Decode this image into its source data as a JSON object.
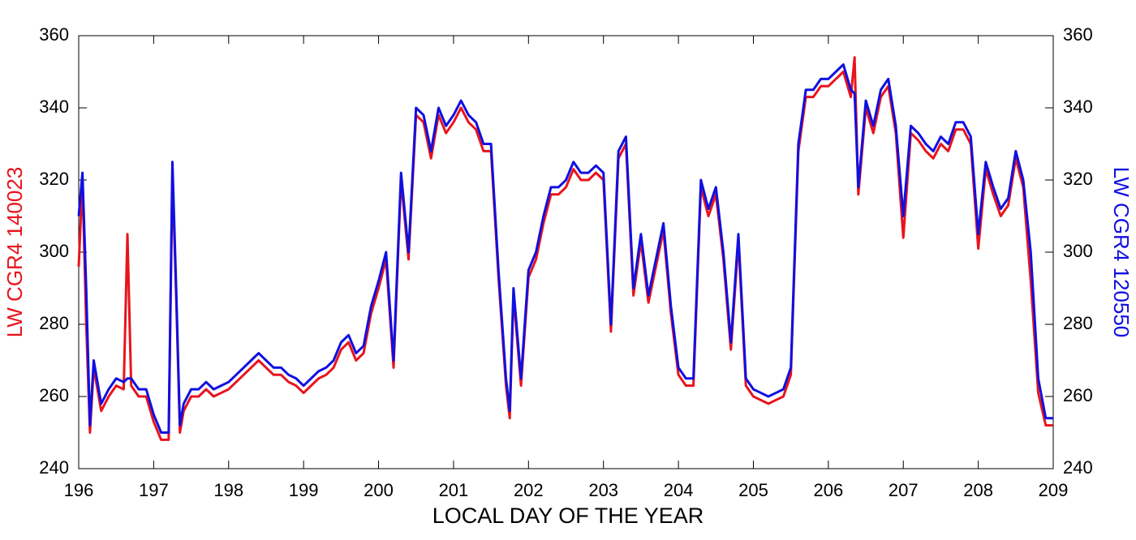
{
  "chart_data": {
    "type": "line",
    "x_label": "LOCAL DAY OF THE YEAR",
    "x": [
      196,
      196.05,
      196.1,
      196.15,
      196.2,
      196.3,
      196.4,
      196.5,
      196.6,
      196.65,
      196.7,
      196.8,
      196.9,
      197,
      197.1,
      197.2,
      197.25,
      197.3,
      197.35,
      197.4,
      197.5,
      197.6,
      197.7,
      197.8,
      197.9,
      198,
      198.1,
      198.2,
      198.3,
      198.4,
      198.5,
      198.6,
      198.7,
      198.8,
      198.9,
      199,
      199.1,
      199.2,
      199.3,
      199.4,
      199.5,
      199.6,
      199.7,
      199.8,
      199.9,
      200,
      200.1,
      200.2,
      200.3,
      200.4,
      200.5,
      200.6,
      200.7,
      200.8,
      200.9,
      201,
      201.1,
      201.2,
      201.3,
      201.4,
      201.5,
      201.6,
      201.7,
      201.75,
      201.8,
      201.9,
      202,
      202.1,
      202.2,
      202.3,
      202.4,
      202.5,
      202.6,
      202.7,
      202.8,
      202.9,
      203,
      203.1,
      203.2,
      203.3,
      203.4,
      203.5,
      203.6,
      203.7,
      203.8,
      203.9,
      204,
      204.1,
      204.2,
      204.3,
      204.4,
      204.5,
      204.6,
      204.7,
      204.8,
      204.9,
      205,
      205.1,
      205.2,
      205.3,
      205.4,
      205.5,
      205.6,
      205.7,
      205.8,
      205.9,
      206,
      206.1,
      206.2,
      206.3,
      206.35,
      206.4,
      206.5,
      206.6,
      206.7,
      206.8,
      206.9,
      207,
      207.1,
      207.2,
      207.3,
      207.4,
      207.5,
      207.6,
      207.7,
      207.8,
      207.9,
      208,
      208.1,
      208.2,
      208.3,
      208.4,
      208.5,
      208.6,
      208.7,
      208.8,
      208.9,
      209
    ],
    "series": [
      {
        "name": "LW CGR4 140023",
        "color": "#e8141c",
        "axis": "y",
        "values": [
          296,
          320,
          280,
          250,
          268,
          256,
          260,
          263,
          262,
          305,
          263,
          260,
          260,
          253,
          248,
          248,
          322,
          288,
          250,
          256,
          260,
          260,
          262,
          260,
          261,
          262,
          264,
          266,
          268,
          270,
          268,
          266,
          266,
          264,
          263,
          261,
          263,
          265,
          266,
          268,
          273,
          275,
          270,
          272,
          283,
          290,
          298,
          268,
          320,
          298,
          338,
          336,
          326,
          338,
          333,
          336,
          340,
          336,
          334,
          328,
          328,
          293,
          263,
          254,
          288,
          263,
          293,
          298,
          308,
          316,
          316,
          318,
          323,
          320,
          320,
          322,
          320,
          278,
          326,
          330,
          288,
          303,
          286,
          296,
          306,
          283,
          266,
          263,
          263,
          318,
          310,
          316,
          298,
          273,
          303,
          263,
          260,
          259,
          258,
          259,
          260,
          266,
          328,
          343,
          343,
          346,
          346,
          348,
          350,
          343,
          354,
          316,
          340,
          333,
          343,
          346,
          333,
          304,
          333,
          331,
          328,
          326,
          330,
          328,
          334,
          334,
          330,
          301,
          323,
          316,
          310,
          313,
          326,
          318,
          292,
          261,
          252,
          252
        ]
      },
      {
        "name": "LW CGR4 120550",
        "color": "#1010e0",
        "axis": "y2",
        "values": [
          310,
          322,
          290,
          252,
          270,
          258,
          262,
          265,
          264,
          265,
          265,
          262,
          262,
          255,
          250,
          250,
          325,
          290,
          252,
          258,
          262,
          262,
          264,
          262,
          263,
          264,
          266,
          268,
          270,
          272,
          270,
          268,
          268,
          266,
          265,
          263,
          265,
          267,
          268,
          270,
          275,
          277,
          272,
          274,
          285,
          292,
          300,
          270,
          322,
          300,
          340,
          338,
          328,
          340,
          335,
          338,
          342,
          338,
          336,
          330,
          330,
          295,
          265,
          256,
          290,
          265,
          295,
          300,
          310,
          318,
          318,
          320,
          325,
          322,
          322,
          324,
          322,
          280,
          328,
          332,
          290,
          305,
          288,
          298,
          308,
          285,
          268,
          265,
          265,
          320,
          312,
          318,
          300,
          275,
          305,
          265,
          262,
          261,
          260,
          261,
          262,
          268,
          330,
          345,
          345,
          348,
          348,
          350,
          352,
          345,
          344,
          318,
          342,
          335,
          345,
          348,
          335,
          310,
          335,
          333,
          330,
          328,
          332,
          330,
          336,
          336,
          332,
          305,
          325,
          318,
          312,
          315,
          328,
          320,
          300,
          265,
          254,
          254
        ]
      }
    ],
    "xlim": [
      196,
      209
    ],
    "xticks": [
      196,
      197,
      198,
      199,
      200,
      201,
      202,
      203,
      204,
      205,
      206,
      207,
      208,
      209
    ],
    "ylim": [
      240,
      360
    ],
    "yticks": [
      240,
      260,
      280,
      300,
      320,
      340,
      360
    ],
    "y2lim": [
      240,
      360
    ],
    "y2ticks": [
      240,
      260,
      280,
      300,
      320,
      340,
      360
    ]
  }
}
